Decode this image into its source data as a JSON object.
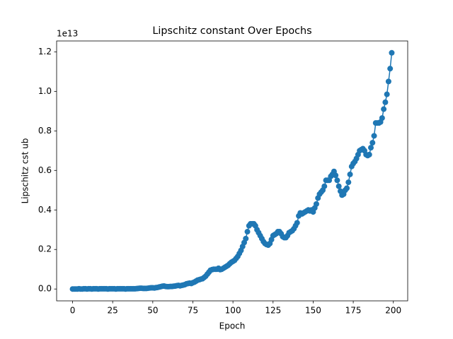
{
  "chart_data": {
    "type": "line",
    "title": "Lipschitz constant Over Epochs",
    "x_label": "Epoch",
    "y_label": "Lipschitz cst ub",
    "y_offset_label": "1e13",
    "color": "#1f77b4",
    "marker": true,
    "x": [
      0,
      1,
      2,
      3,
      4,
      5,
      6,
      7,
      8,
      9,
      10,
      11,
      12,
      13,
      14,
      15,
      16,
      17,
      18,
      19,
      20,
      21,
      22,
      23,
      24,
      25,
      26,
      27,
      28,
      29,
      30,
      31,
      32,
      33,
      34,
      35,
      36,
      37,
      38,
      39,
      40,
      41,
      42,
      43,
      44,
      45,
      46,
      47,
      48,
      49,
      50,
      51,
      52,
      53,
      54,
      55,
      56,
      57,
      58,
      59,
      60,
      61,
      62,
      63,
      64,
      65,
      66,
      67,
      68,
      69,
      70,
      71,
      72,
      73,
      74,
      75,
      76,
      77,
      78,
      79,
      80,
      81,
      82,
      83,
      84,
      85,
      86,
      87,
      88,
      89,
      90,
      91,
      92,
      93,
      94,
      95,
      96,
      97,
      98,
      99,
      100,
      101,
      102,
      103,
      104,
      105,
      106,
      107,
      108,
      109,
      110,
      111,
      112,
      113,
      114,
      115,
      116,
      117,
      118,
      119,
      120,
      121,
      122,
      123,
      124,
      125,
      126,
      127,
      128,
      129,
      130,
      131,
      132,
      133,
      134,
      135,
      136,
      137,
      138,
      139,
      140,
      141,
      142,
      143,
      144,
      145,
      146,
      147,
      148,
      149,
      150,
      151,
      152,
      153,
      154,
      155,
      156,
      157,
      158,
      159,
      160,
      161,
      162,
      163,
      164,
      165,
      166,
      167,
      168,
      169,
      170,
      171,
      172,
      173,
      174,
      175,
      176,
      177,
      178,
      179,
      180,
      181,
      182,
      183,
      184,
      185,
      186,
      187,
      188,
      189,
      190,
      191,
      192,
      193,
      194,
      195,
      196,
      197,
      198,
      199
    ],
    "values": [
      0,
      0,
      0,
      0,
      0.001,
      0,
      0,
      0.001,
      0.001,
      0,
      0.001,
      0.001,
      0,
      0.001,
      0.001,
      0.001,
      0,
      0.001,
      0.001,
      0.001,
      0.001,
      0.001,
      0,
      0.001,
      0.001,
      0.001,
      0.001,
      0,
      0.001,
      0.001,
      0.001,
      0.001,
      0.001,
      0,
      0.001,
      0.001,
      0.001,
      0.001,
      0.001,
      0.001,
      0.002,
      0.003,
      0.004,
      0.004,
      0.003,
      0.003,
      0.003,
      0.004,
      0.005,
      0.006,
      0.006,
      0.005,
      0.007,
      0.008,
      0.01,
      0.012,
      0.014,
      0.015,
      0.013,
      0.012,
      0.012,
      0.013,
      0.013,
      0.014,
      0.015,
      0.017,
      0.018,
      0.016,
      0.018,
      0.02,
      0.022,
      0.026,
      0.028,
      0.03,
      0.028,
      0.032,
      0.035,
      0.04,
      0.045,
      0.047,
      0.05,
      0.052,
      0.058,
      0.065,
      0.075,
      0.085,
      0.095,
      0.098,
      0.1,
      0.1,
      0.1,
      0.105,
      0.098,
      0.1,
      0.105,
      0.11,
      0.115,
      0.12,
      0.128,
      0.135,
      0.14,
      0.145,
      0.155,
      0.165,
      0.18,
      0.195,
      0.215,
      0.235,
      0.255,
      0.29,
      0.32,
      0.33,
      0.33,
      0.33,
      0.32,
      0.3,
      0.285,
      0.27,
      0.255,
      0.24,
      0.23,
      0.225,
      0.222,
      0.23,
      0.25,
      0.27,
      0.275,
      0.28,
      0.29,
      0.29,
      0.28,
      0.265,
      0.26,
      0.26,
      0.27,
      0.285,
      0.29,
      0.295,
      0.305,
      0.32,
      0.335,
      0.37,
      0.385,
      0.38,
      0.385,
      0.39,
      0.395,
      0.4,
      0.395,
      0.4,
      0.39,
      0.41,
      0.43,
      0.46,
      0.48,
      0.49,
      0.5,
      0.52,
      0.55,
      0.55,
      0.55,
      0.57,
      0.58,
      0.595,
      0.575,
      0.55,
      0.52,
      0.495,
      0.475,
      0.48,
      0.5,
      0.51,
      0.54,
      0.58,
      0.62,
      0.635,
      0.645,
      0.66,
      0.68,
      0.7,
      0.705,
      0.71,
      0.7,
      0.68,
      0.675,
      0.68,
      0.715,
      0.74,
      0.775,
      0.84,
      0.84,
      0.84,
      0.845,
      0.865,
      0.91,
      0.945,
      0.985,
      1.05,
      1.115,
      1.195
    ],
    "xlim": [
      -9.95,
      208.95
    ],
    "ylim": [
      -0.06,
      1.255
    ],
    "xticks": [
      0,
      25,
      50,
      75,
      100,
      125,
      150,
      175,
      200
    ],
    "yticks": [
      {
        "value": 0,
        "label": "0.0"
      },
      0.2,
      0.4,
      0.6,
      0.8,
      {
        "value": 1,
        "label": "1.0"
      },
      1.2
    ]
  }
}
